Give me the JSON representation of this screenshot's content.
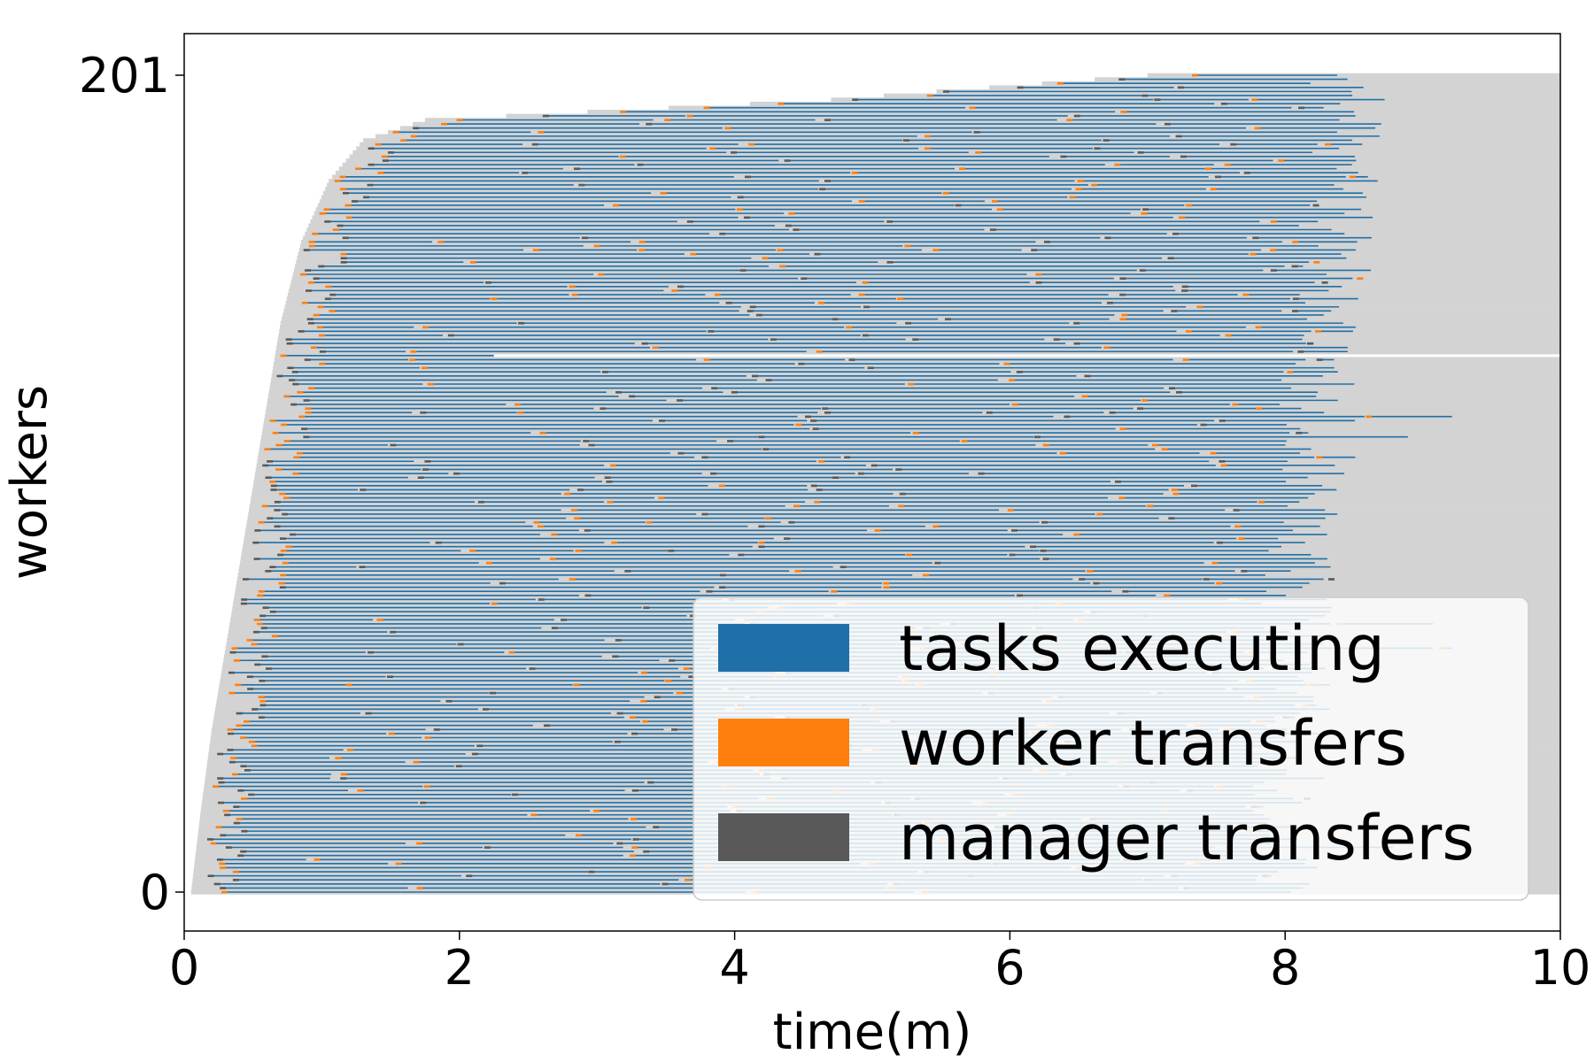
{
  "chart_data": {
    "type": "gantt",
    "xlabel": "time(m)",
    "ylabel": "workers",
    "xlim": [
      0,
      10
    ],
    "ylim": [
      0,
      201
    ],
    "x_ticks": [
      "0",
      "2",
      "4",
      "6",
      "8",
      "10"
    ],
    "y_ticks": [
      "0",
      "201"
    ],
    "worker_count": 201,
    "idle_color": "#d3d3d3",
    "legend": {
      "position": "lower-right",
      "items": [
        {
          "label": "tasks executing",
          "color": "#1f6fa8"
        },
        {
          "label": "worker transfers",
          "color": "#ff7f0e"
        },
        {
          "label": "manager transfers",
          "color": "#595959"
        }
      ]
    },
    "worker_connect_time_m": [
      {
        "worker": 0,
        "start": 0.05
      },
      {
        "worker": 20,
        "start": 0.12
      },
      {
        "worker": 40,
        "start": 0.2
      },
      {
        "worker": 60,
        "start": 0.3
      },
      {
        "worker": 80,
        "start": 0.4
      },
      {
        "worker": 100,
        "start": 0.5
      },
      {
        "worker": 120,
        "start": 0.6
      },
      {
        "worker": 140,
        "start": 0.7
      },
      {
        "worker": 160,
        "start": 0.85
      },
      {
        "worker": 175,
        "start": 1.05
      },
      {
        "worker": 185,
        "start": 1.3
      },
      {
        "worker": 190,
        "start": 1.75
      },
      {
        "worker": 195,
        "start": 4.7
      },
      {
        "worker": 201,
        "start": 7.0
      }
    ],
    "tasks_end_time_m": [
      {
        "worker": 0,
        "end": 7.95
      },
      {
        "worker": 201,
        "end": 8.45
      }
    ],
    "worker_end_time_m": 10.0,
    "disconnected_worker": {
      "worker": 132,
      "from": 2.25,
      "to": 10.0
    }
  }
}
